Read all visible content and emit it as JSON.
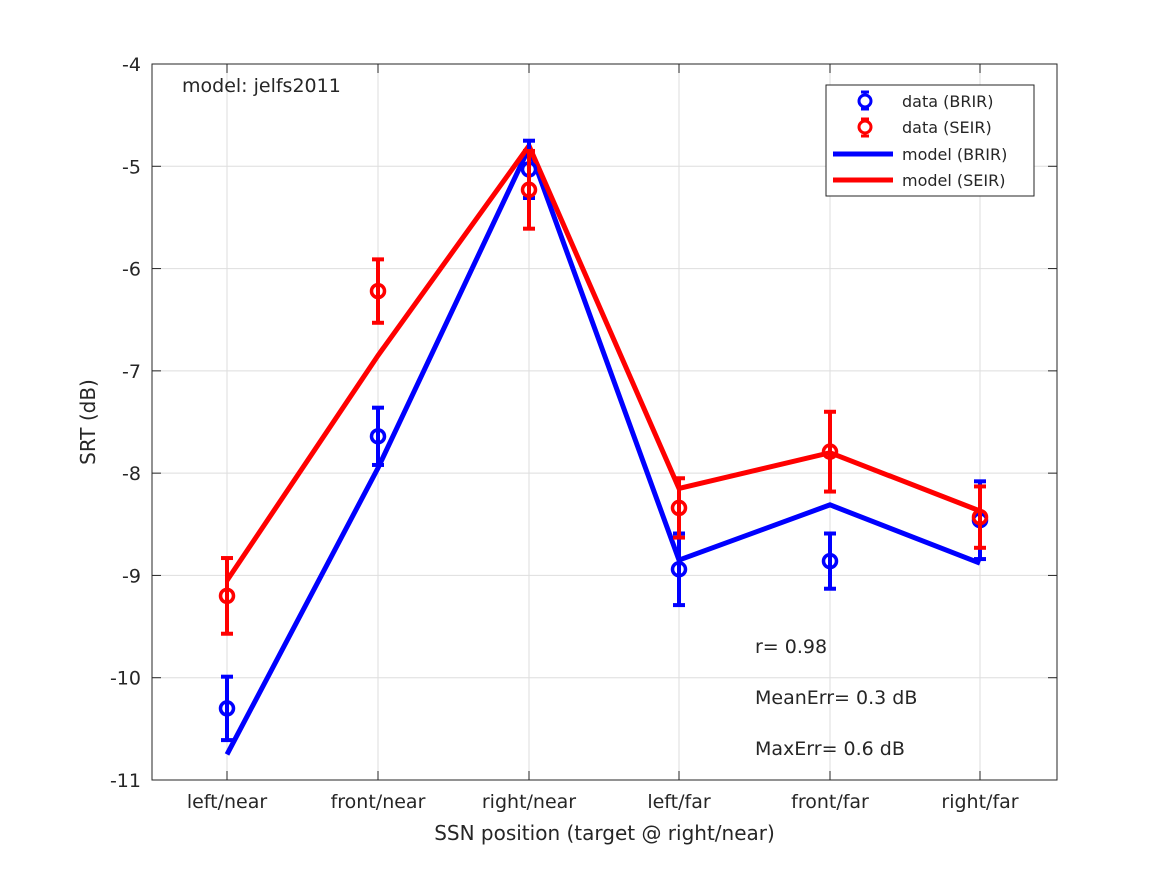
{
  "chart_data": {
    "type": "line",
    "title": "",
    "xlabel": "SSN position (target @ right/near)",
    "ylabel": "SRT (dB)",
    "categories": [
      "left/near",
      "front/near",
      "right/near",
      "left/far",
      "front/far",
      "right/far"
    ],
    "ylim": [
      -11,
      -4
    ],
    "yticks": [
      -11,
      -10,
      -9,
      -8,
      -7,
      -6,
      -5,
      -4
    ],
    "ytick_labels": [
      "-11",
      "-10",
      "-9",
      "-8",
      "-7",
      "-6",
      "-5",
      "-4"
    ],
    "grid": true,
    "legend_position": "top-right",
    "series": [
      {
        "name": "data (BRIR)",
        "kind": "errorbar",
        "color": "#0000ff",
        "values": [
          -10.3,
          -7.64,
          -5.03,
          -8.94,
          -8.86,
          -8.46
        ],
        "errors": [
          0.31,
          0.28,
          0.28,
          0.35,
          0.27,
          0.38
        ]
      },
      {
        "name": "data (SEIR)",
        "kind": "errorbar",
        "color": "#ff0000",
        "values": [
          -9.2,
          -6.22,
          -5.23,
          -8.34,
          -7.79,
          -8.43
        ],
        "errors": [
          0.37,
          0.31,
          0.38,
          0.29,
          0.39,
          0.3
        ]
      },
      {
        "name": "model (BRIR)",
        "kind": "line",
        "color": "#0000ff",
        "values": [
          -10.75,
          -7.95,
          -4.82,
          -8.85,
          -8.31,
          -8.88
        ]
      },
      {
        "name": "model (SEIR)",
        "kind": "line",
        "color": "#ff0000",
        "values": [
          -9.05,
          -6.85,
          -4.8,
          -8.15,
          -7.8,
          -8.37
        ]
      }
    ],
    "annotations": {
      "model": "model: jelfs2011",
      "r": "r= 0.98",
      "mean_err": "MeanErr= 0.3 dB",
      "max_err": "MaxErr= 0.6 dB"
    }
  }
}
